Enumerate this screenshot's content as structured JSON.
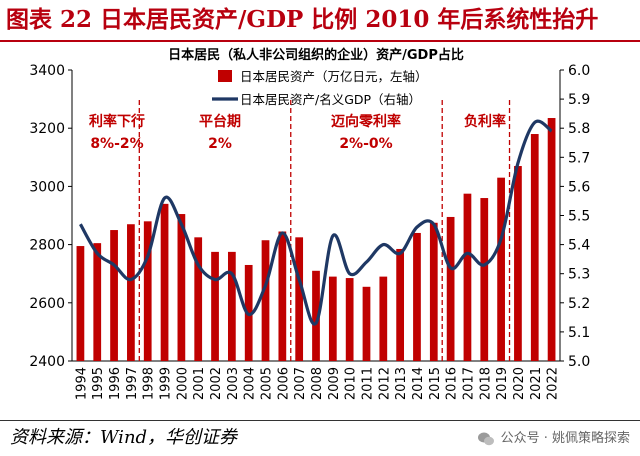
{
  "figure_title": "图表 22  日本居民资产/GDP 比例 2010 年后系统性抬升",
  "source": "资料来源：Wind，华创证券",
  "watermark": "公众号 · 姚佩策略探索",
  "colors": {
    "bar": "#c00000",
    "line": "#1f3864",
    "title": "#b8000f",
    "annotation": "#c00000",
    "divider": "#c00000"
  },
  "chart_data": {
    "type": "bar+line",
    "title": "日本居民（私人非公司组织的企业）资产/GDP占比",
    "categories": [
      "1994",
      "1995",
      "1996",
      "1997",
      "1998",
      "1999",
      "2000",
      "2001",
      "2002",
      "2003",
      "2004",
      "2005",
      "2006",
      "2007",
      "2008",
      "2009",
      "2010",
      "2011",
      "2012",
      "2013",
      "2014",
      "2015",
      "2016",
      "2017",
      "2018",
      "2019",
      "2020",
      "2021",
      "2022"
    ],
    "series": [
      {
        "name": "日本居民资产（万亿日元，左轴）",
        "type": "bar",
        "axis": "left",
        "values": [
          2795,
          2805,
          2850,
          2870,
          2880,
          2940,
          2905,
          2825,
          2775,
          2775,
          2730,
          2815,
          2845,
          2825,
          2710,
          2690,
          2685,
          2655,
          2690,
          2785,
          2840,
          2875,
          2895,
          2975,
          2960,
          3030,
          3070,
          3180,
          3235
        ]
      },
      {
        "name": "日本居民资产/名义GDP（右轴）",
        "type": "line",
        "axis": "right",
        "values": [
          5.47,
          5.37,
          5.33,
          5.28,
          5.36,
          5.56,
          5.47,
          5.33,
          5.28,
          5.3,
          5.16,
          5.26,
          5.44,
          5.28,
          5.13,
          5.43,
          5.3,
          5.34,
          5.4,
          5.37,
          5.46,
          5.47,
          5.32,
          5.37,
          5.33,
          5.42,
          5.68,
          5.82,
          5.79
        ]
      }
    ],
    "left_axis": {
      "min": 2400,
      "max": 3400,
      "ticks": [
        2400,
        2600,
        2800,
        3000,
        3200,
        3400
      ]
    },
    "right_axis": {
      "min": 5.0,
      "max": 6.0,
      "ticks": [
        "5.0",
        "5.1",
        "5.2",
        "5.3",
        "5.4",
        "5.5",
        "5.6",
        "5.7",
        "5.8",
        "5.9",
        "6.0"
      ]
    },
    "dividers_after": [
      "1997",
      "2006",
      "2015",
      "2019"
    ],
    "annotations": [
      {
        "lines": [
          "利率下行",
          "8%-2%"
        ],
        "at": "1995.5"
      },
      {
        "lines": [
          "平台期",
          "2%"
        ],
        "at": "2001.5"
      },
      {
        "lines": [
          "迈向零利率",
          "2%-0%"
        ],
        "at": "2010.5"
      },
      {
        "lines": [
          "负利率"
        ],
        "at": "2017.5"
      }
    ]
  }
}
